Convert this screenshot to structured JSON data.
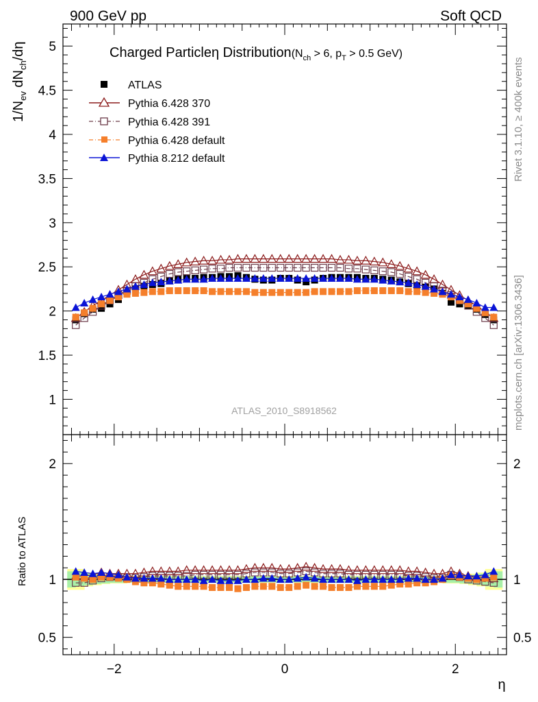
{
  "header": {
    "left": "900 GeV pp",
    "right": "Soft QCD"
  },
  "side_labels": {
    "rivet": "Rivet 3.1.10, ≥ 400k events",
    "mcplots": "mcplots.cern.ch [arXiv:1306.3436]"
  },
  "title": {
    "main": "Charged Particleη Distribution",
    "cuts_prefix": "(N",
    "cuts_sub1": "ch",
    "cuts_mid": " > 6, p",
    "cuts_sub2": "T",
    "cuts_suffix": " > 0.5 GeV)"
  },
  "ylabel_top": {
    "a": "1/N",
    "a_sub": "ev",
    "b": " dN",
    "b_sub": "ch",
    "c": "/dη"
  },
  "ylabel_bottom": "Ratio to ATLAS",
  "xlabel": "η",
  "analysis_id": "ATLAS_2010_S8918562",
  "colors": {
    "atlas": "#000000",
    "p370": "#8b1a1a",
    "p391": "#6b3a48",
    "p6def": "#f57f2b",
    "p8": "#0a14d6",
    "band_inner": "#a8f0a8",
    "band_outer": "#ffff9a"
  },
  "chart_data": [
    {
      "type": "scatter",
      "panel": "main",
      "xlabel": "η",
      "ylabel": "1/N_ev dN_ch/dη",
      "xlim": [
        -2.6,
        2.6
      ],
      "ylim": [
        0.6,
        5.25
      ],
      "yticks": [
        1,
        1.5,
        2,
        2.5,
        3,
        3.5,
        4,
        4.5,
        5
      ],
      "ytick_labels": [
        "1",
        "1.5",
        "2",
        "2.5",
        "3",
        "3.5",
        "4",
        "4.5",
        "5"
      ],
      "x": [
        -2.45,
        -2.35,
        -2.25,
        -2.15,
        -2.05,
        -1.95,
        -1.85,
        -1.75,
        -1.65,
        -1.55,
        -1.45,
        -1.35,
        -1.25,
        -1.15,
        -1.05,
        -0.95,
        -0.85,
        -0.75,
        -0.65,
        -0.55,
        -0.45,
        -0.35,
        -0.25,
        -0.15,
        -0.05,
        0.05,
        0.15,
        0.25,
        0.35,
        0.45,
        0.55,
        0.65,
        0.75,
        0.85,
        0.95,
        1.05,
        1.15,
        1.25,
        1.35,
        1.45,
        1.55,
        1.65,
        1.75,
        1.85,
        1.95,
        2.05,
        2.15,
        2.25,
        2.35,
        2.45
      ],
      "legend_position": "top-left",
      "series": [
        {
          "name": "ATLAS",
          "marker": "filled-square",
          "color_key": "atlas",
          "values": [
            1.9,
            1.97,
            2.02,
            2.03,
            2.08,
            2.13,
            2.2,
            2.25,
            2.28,
            2.3,
            2.31,
            2.34,
            2.36,
            2.37,
            2.37,
            2.38,
            2.38,
            2.39,
            2.39,
            2.4,
            2.38,
            2.36,
            2.35,
            2.35,
            2.37,
            2.37,
            2.35,
            2.33,
            2.35,
            2.37,
            2.38,
            2.38,
            2.38,
            2.38,
            2.37,
            2.37,
            2.36,
            2.35,
            2.33,
            2.31,
            2.29,
            2.27,
            2.25,
            2.2,
            2.1,
            2.08,
            2.06,
            2.02,
            1.96,
            1.9
          ]
        },
        {
          "name": "Pythia 6.428 370",
          "marker": "open-triangle",
          "color_key": "p370",
          "line": "solid",
          "values": [
            1.92,
            1.99,
            2.06,
            2.12,
            2.18,
            2.24,
            2.3,
            2.36,
            2.41,
            2.45,
            2.48,
            2.51,
            2.53,
            2.55,
            2.56,
            2.57,
            2.57,
            2.58,
            2.58,
            2.59,
            2.59,
            2.59,
            2.59,
            2.59,
            2.59,
            2.59,
            2.59,
            2.59,
            2.59,
            2.59,
            2.59,
            2.58,
            2.58,
            2.57,
            2.57,
            2.56,
            2.55,
            2.53,
            2.51,
            2.48,
            2.45,
            2.41,
            2.36,
            2.3,
            2.24,
            2.18,
            2.12,
            2.06,
            1.99,
            1.92
          ]
        },
        {
          "name": "Pythia 6.428 391",
          "marker": "open-square",
          "color_key": "p391",
          "line": "dashdot",
          "values": [
            1.84,
            1.92,
            1.99,
            2.06,
            2.12,
            2.18,
            2.23,
            2.28,
            2.32,
            2.36,
            2.39,
            2.42,
            2.44,
            2.45,
            2.46,
            2.47,
            2.48,
            2.48,
            2.49,
            2.49,
            2.49,
            2.49,
            2.49,
            2.49,
            2.49,
            2.49,
            2.49,
            2.49,
            2.49,
            2.49,
            2.49,
            2.49,
            2.48,
            2.48,
            2.47,
            2.46,
            2.45,
            2.44,
            2.42,
            2.39,
            2.36,
            2.32,
            2.28,
            2.23,
            2.18,
            2.12,
            2.06,
            1.99,
            1.92,
            1.84
          ]
        },
        {
          "name": "Pythia 6.428 default",
          "marker": "filled-square",
          "color_key": "p6def",
          "line": "dashdot",
          "values": [
            1.93,
            1.98,
            2.03,
            2.08,
            2.12,
            2.16,
            2.19,
            2.2,
            2.21,
            2.22,
            2.22,
            2.23,
            2.23,
            2.23,
            2.23,
            2.23,
            2.22,
            2.22,
            2.22,
            2.22,
            2.22,
            2.21,
            2.21,
            2.21,
            2.21,
            2.21,
            2.21,
            2.21,
            2.22,
            2.22,
            2.22,
            2.22,
            2.22,
            2.23,
            2.23,
            2.23,
            2.23,
            2.23,
            2.23,
            2.22,
            2.22,
            2.21,
            2.2,
            2.19,
            2.16,
            2.12,
            2.08,
            2.03,
            1.98,
            1.93
          ]
        },
        {
          "name": "Pythia 8.212 default",
          "marker": "filled-triangle",
          "color_key": "p8",
          "line": "solid",
          "values": [
            2.04,
            2.09,
            2.13,
            2.16,
            2.19,
            2.22,
            2.25,
            2.28,
            2.3,
            2.32,
            2.33,
            2.34,
            2.35,
            2.36,
            2.36,
            2.36,
            2.37,
            2.37,
            2.37,
            2.37,
            2.37,
            2.37,
            2.37,
            2.37,
            2.37,
            2.37,
            2.37,
            2.37,
            2.37,
            2.37,
            2.37,
            2.37,
            2.37,
            2.36,
            2.36,
            2.36,
            2.35,
            2.34,
            2.33,
            2.32,
            2.3,
            2.28,
            2.25,
            2.22,
            2.19,
            2.16,
            2.13,
            2.09,
            2.04,
            2.04
          ]
        }
      ]
    },
    {
      "type": "scatter",
      "panel": "ratio",
      "xlabel": "η",
      "ylabel": "Ratio to ATLAS",
      "xlim": [
        -2.6,
        2.6
      ],
      "ylim": [
        0.35,
        2.25
      ],
      "yticks": [
        0.5,
        1,
        2
      ],
      "ytick_labels": [
        "0.5",
        "1",
        "2"
      ],
      "xticks": [
        -2,
        0,
        2
      ],
      "xtick_labels": [
        "−2",
        "0",
        "2"
      ],
      "reference": 1.0,
      "band_x": [
        -2.5,
        -2.4,
        -2.3,
        -2.2,
        -2.1,
        -2.0,
        -1.9,
        -1.8,
        -1.7,
        -1.6,
        -1.5,
        -1.4,
        -1.3,
        -1.2,
        -1.1,
        -1.0,
        -0.9,
        -0.8,
        -0.7,
        -0.6,
        -0.5,
        -0.4,
        -0.3,
        -0.2,
        -0.1,
        0.0,
        0.1,
        0.2,
        0.3,
        0.4,
        0.5,
        0.6,
        0.7,
        0.8,
        0.9,
        1.0,
        1.1,
        1.2,
        1.3,
        1.4,
        1.5,
        1.6,
        1.7,
        1.8,
        1.9,
        2.0,
        2.1,
        2.2,
        2.3,
        2.4,
        2.5
      ],
      "band_inner_halfwidth": [
        0.07,
        0.06,
        0.05,
        0.04,
        0.035,
        0.03,
        0.03,
        0.025,
        0.025,
        0.025,
        0.025,
        0.025,
        0.025,
        0.025,
        0.025,
        0.025,
        0.025,
        0.025,
        0.025,
        0.025,
        0.025,
        0.025,
        0.025,
        0.025,
        0.025,
        0.025,
        0.025,
        0.025,
        0.025,
        0.025,
        0.025,
        0.025,
        0.025,
        0.025,
        0.025,
        0.025,
        0.025,
        0.025,
        0.025,
        0.025,
        0.025,
        0.025,
        0.025,
        0.025,
        0.03,
        0.03,
        0.035,
        0.04,
        0.05,
        0.06,
        0.07
      ],
      "band_outer_halfwidth": [
        0.09,
        0.09,
        0.06,
        0.05,
        0.04,
        0.035,
        0.035,
        0.03,
        0.03,
        0.03,
        0.03,
        0.03,
        0.03,
        0.03,
        0.03,
        0.03,
        0.03,
        0.03,
        0.03,
        0.03,
        0.03,
        0.03,
        0.03,
        0.03,
        0.03,
        0.03,
        0.03,
        0.03,
        0.03,
        0.03,
        0.03,
        0.03,
        0.03,
        0.03,
        0.03,
        0.03,
        0.03,
        0.03,
        0.03,
        0.03,
        0.03,
        0.03,
        0.03,
        0.03,
        0.035,
        0.035,
        0.04,
        0.05,
        0.06,
        0.09,
        0.09
      ],
      "series": [
        {
          "name": "Pythia 6.428 370",
          "color_key": "p370",
          "marker": "open-triangle",
          "line": "solid",
          "values": [
            1.03,
            1.03,
            1.04,
            1.06,
            1.05,
            1.05,
            1.05,
            1.05,
            1.06,
            1.07,
            1.07,
            1.07,
            1.07,
            1.08,
            1.08,
            1.08,
            1.08,
            1.08,
            1.08,
            1.08,
            1.09,
            1.1,
            1.1,
            1.1,
            1.09,
            1.09,
            1.1,
            1.11,
            1.1,
            1.09,
            1.09,
            1.09,
            1.08,
            1.08,
            1.08,
            1.08,
            1.08,
            1.08,
            1.08,
            1.07,
            1.07,
            1.06,
            1.05,
            1.05,
            1.07,
            1.05,
            1.03,
            1.02,
            1.02,
            1.01
          ]
        },
        {
          "name": "Pythia 6.428 391",
          "color_key": "p391",
          "marker": "open-square",
          "line": "dashdot",
          "values": [
            0.97,
            0.97,
            0.99,
            1.01,
            1.02,
            1.02,
            1.01,
            1.01,
            1.02,
            1.03,
            1.03,
            1.03,
            1.03,
            1.03,
            1.04,
            1.04,
            1.04,
            1.04,
            1.04,
            1.04,
            1.05,
            1.06,
            1.06,
            1.06,
            1.05,
            1.05,
            1.06,
            1.07,
            1.06,
            1.05,
            1.05,
            1.05,
            1.04,
            1.04,
            1.04,
            1.04,
            1.04,
            1.04,
            1.04,
            1.03,
            1.03,
            1.02,
            1.01,
            1.01,
            1.04,
            1.02,
            1.0,
            0.99,
            0.98,
            0.97
          ]
        },
        {
          "name": "Pythia 6.428 default",
          "color_key": "p6def",
          "marker": "filled-square",
          "line": "dashdot",
          "values": [
            1.02,
            1.01,
            1.0,
            1.02,
            1.02,
            1.01,
            1.0,
            0.98,
            0.97,
            0.97,
            0.96,
            0.95,
            0.94,
            0.94,
            0.94,
            0.94,
            0.93,
            0.93,
            0.93,
            0.92,
            0.93,
            0.94,
            0.94,
            0.94,
            0.93,
            0.93,
            0.94,
            0.95,
            0.94,
            0.94,
            0.93,
            0.93,
            0.93,
            0.94,
            0.94,
            0.94,
            0.94,
            0.95,
            0.96,
            0.96,
            0.97,
            0.97,
            0.98,
            1.0,
            1.03,
            1.02,
            1.01,
            1.0,
            1.01,
            1.02
          ]
        },
        {
          "name": "Pythia 8.212 default",
          "color_key": "p8",
          "marker": "filled-triangle",
          "line": "solid",
          "values": [
            1.07,
            1.06,
            1.05,
            1.06,
            1.05,
            1.04,
            1.02,
            1.01,
            1.01,
            1.01,
            1.01,
            1.0,
            1.0,
            1.0,
            1.0,
            0.99,
            1.0,
            0.99,
            0.99,
            0.99,
            1.0,
            1.0,
            1.01,
            1.01,
            1.0,
            1.0,
            1.01,
            1.02,
            1.01,
            1.0,
            1.0,
            1.0,
            1.0,
            0.99,
            1.0,
            1.0,
            1.0,
            1.0,
            1.0,
            1.01,
            1.01,
            1.0,
            1.0,
            1.01,
            1.04,
            1.04,
            1.03,
            1.03,
            1.04,
            1.07
          ]
        }
      ]
    }
  ]
}
